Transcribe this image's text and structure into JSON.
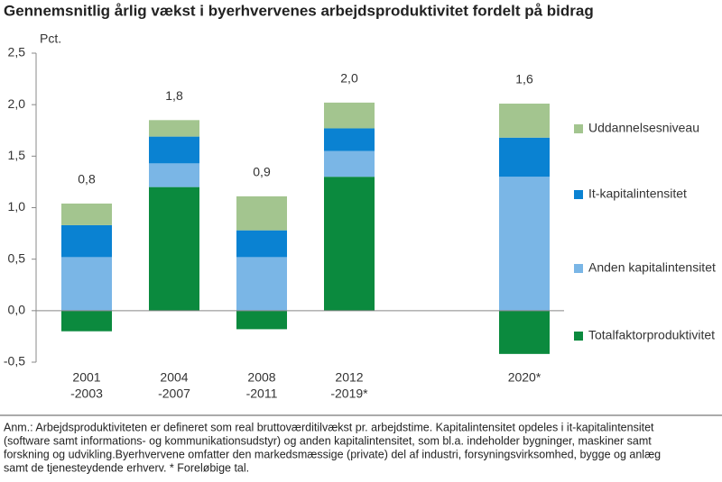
{
  "chart_data": {
    "type": "stacked-bar",
    "title": "Gennemsnitlig årlig vækst i byerhvervenes arbejdsproduktivitet fordelt på bidrag",
    "y_label": "Pct.",
    "categories": [
      [
        "2001",
        "-2003"
      ],
      [
        "2004",
        "-2007"
      ],
      [
        "2008",
        "-2011"
      ],
      [
        "2012",
        "-2019*"
      ],
      null,
      [
        "2020*"
      ]
    ],
    "series": [
      {
        "name": "Totalfaktorproduktivitet",
        "color": "#0b8a3e",
        "values": [
          -0.2,
          1.2,
          -0.18,
          1.3,
          null,
          -0.42
        ]
      },
      {
        "name": "Anden kapitalintensitet",
        "color": "#7ab6e6",
        "values": [
          0.52,
          0.23,
          0.52,
          0.25,
          null,
          1.3
        ]
      },
      {
        "name": "It-kapitalintensitet",
        "color": "#0a82d2",
        "values": [
          0.31,
          0.26,
          0.26,
          0.22,
          null,
          0.38
        ]
      },
      {
        "name": "Uddannelsesniveau",
        "color": "#a3c58f",
        "values": [
          0.21,
          0.16,
          0.33,
          0.25,
          null,
          0.33
        ]
      }
    ],
    "totals": {
      "values": [
        0.8,
        1.8,
        0.9,
        2.0,
        null,
        1.6
      ],
      "value_labels": [
        "0,8",
        "1,8",
        "0,9",
        "2,0",
        null,
        "1,6"
      ]
    },
    "ylim": [
      -0.5,
      2.5
    ],
    "yticks": [
      {
        "value": -0.5,
        "label": "-0,5"
      },
      {
        "value": 0,
        "label": "0,0"
      },
      {
        "value": 0.5,
        "label": "0,5"
      },
      {
        "value": 1,
        "label": "1,0"
      },
      {
        "value": 1.5,
        "label": "1,5"
      },
      {
        "value": 2,
        "label": "2,0"
      },
      {
        "value": 2.5,
        "label": "2,5"
      }
    ],
    "legend": "right",
    "note": [
      "Anm.: Arbejdsproduktiviteten er defineret som real bruttoværditilvækst pr. arbejdstime. Kapitalintensitet opdeles i it-kapitalintensitet",
      "(software samt informations- og kommunikationsudstyr) og anden kapitalintensitet, som bl.a. indeholder bygninger, maskiner samt",
      "forskning og udvikling.Byerhvervene omfatter den markedsmæssige (private) del af industri, forsyningsvirksomhed, bygge og anlæg",
      "samt de tjenesteydende erhverv. * Foreløbige tal."
    ]
  }
}
